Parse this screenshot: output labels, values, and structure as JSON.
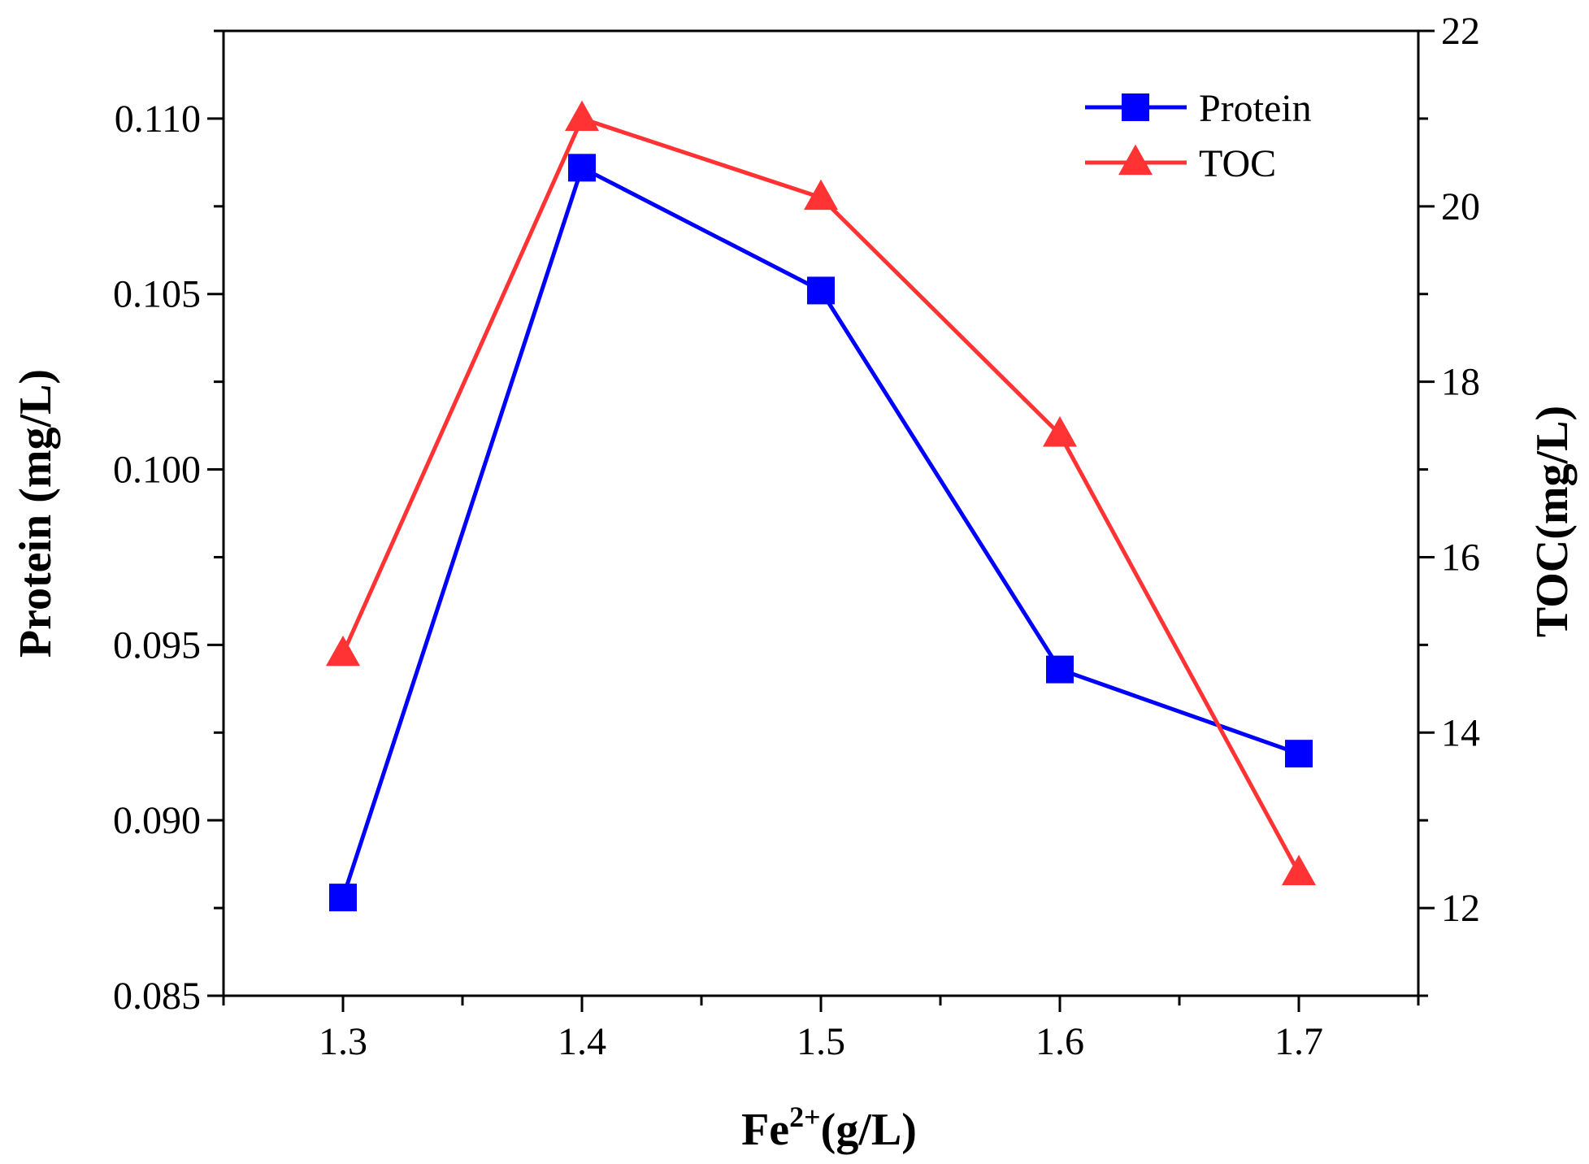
{
  "chart_data": {
    "type": "line",
    "title": "",
    "x": [
      1.3,
      1.4,
      1.5,
      1.6,
      1.7
    ],
    "xlim": [
      1.25,
      1.75
    ],
    "xticks": [
      "1.3",
      "1.4",
      "1.5",
      "1.6",
      "1.7"
    ],
    "xlabel": {
      "base": "Fe",
      "sup": "2+",
      "rest": "(g/L)"
    },
    "ylabel_left": "Protein (mg/L)",
    "ylabel_right": "TOC(mg/L)",
    "ylim_left": [
      0.085,
      0.1125
    ],
    "yticks_left": [
      "0.085",
      "0.090",
      "0.095",
      "0.100",
      "0.105",
      "0.110"
    ],
    "ylim_right": [
      11,
      22
    ],
    "yticks_right": [
      "12",
      "14",
      "16",
      "18",
      "20",
      "22"
    ],
    "grid": false,
    "legend_position": "top-right",
    "series": [
      {
        "name": "Protein",
        "axis": "left",
        "color": "#0000ff",
        "marker": "square",
        "values": [
          0.0878,
          0.1086,
          0.1051,
          0.0943,
          0.0919
        ]
      },
      {
        "name": "TOC",
        "axis": "right",
        "color": "#ff3333",
        "marker": "triangle",
        "values": [
          14.9,
          21.0,
          20.1,
          17.4,
          12.4
        ]
      }
    ]
  }
}
